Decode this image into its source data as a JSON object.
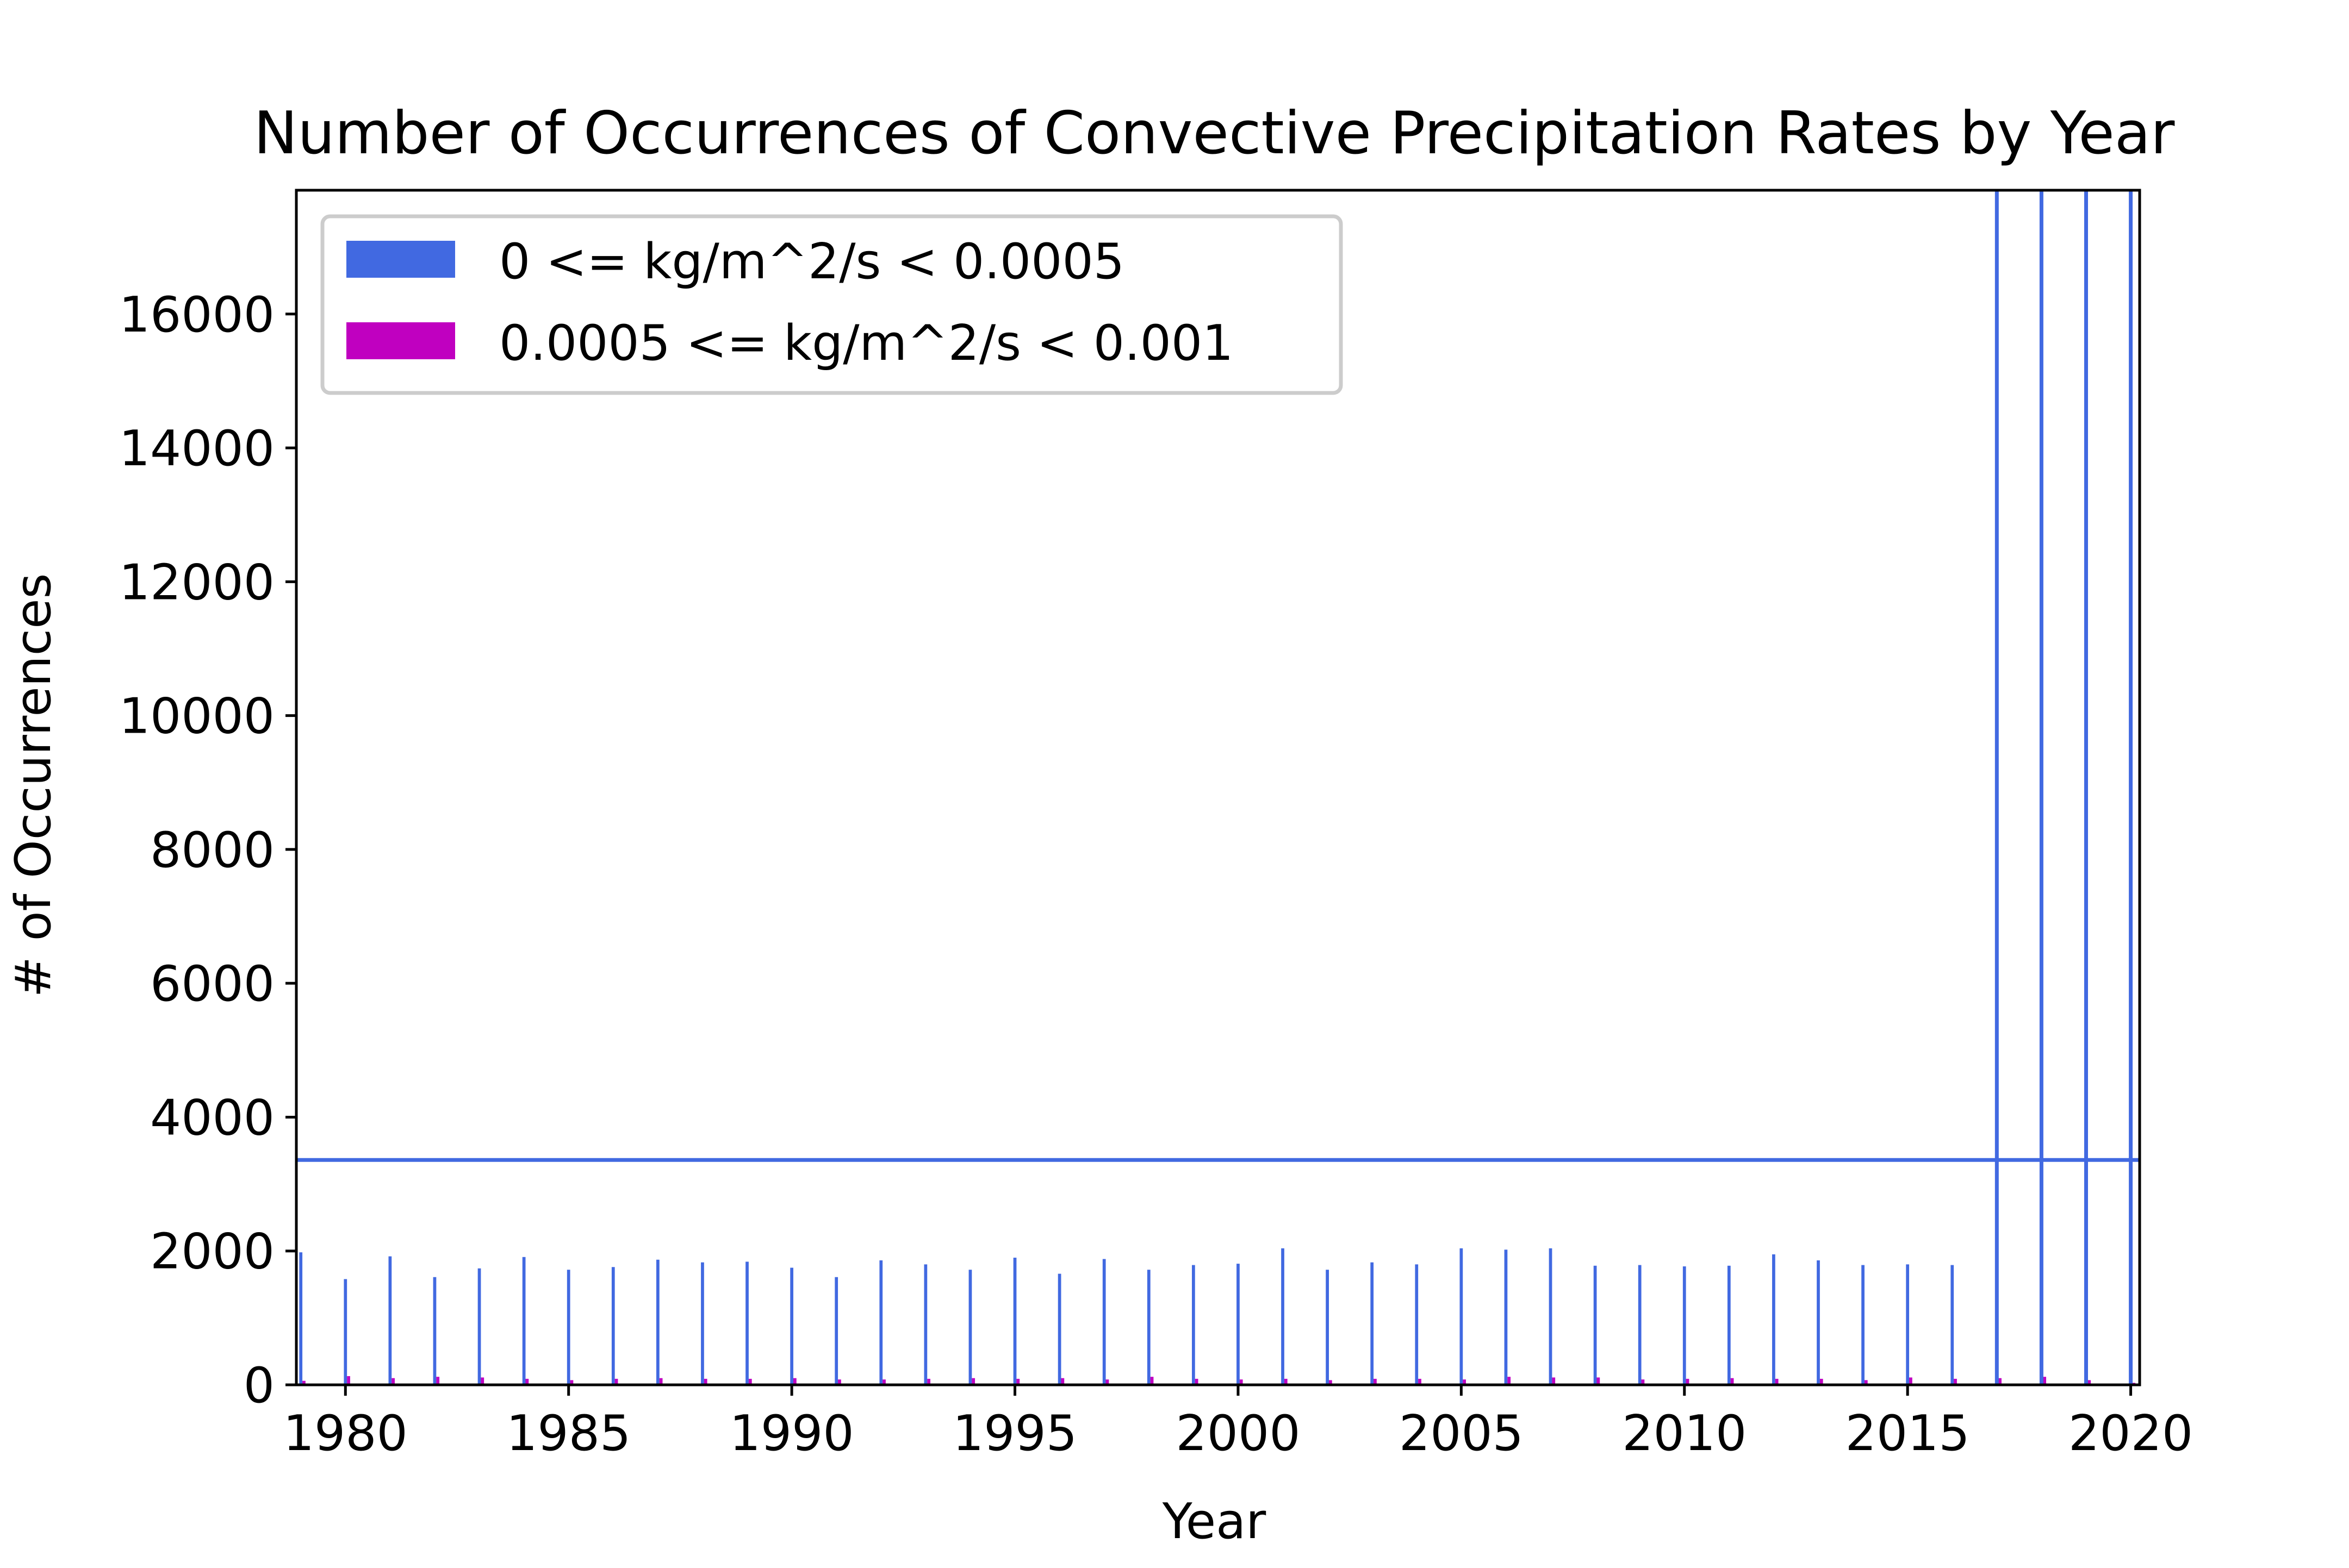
{
  "chart_data": {
    "type": "bar",
    "title": "Number of Occurrences of Convective Precipitation Rates by Year",
    "xlabel": "Year",
    "ylabel": "# of Occurrences",
    "xlim": [
      1978.9,
      2020.2
    ],
    "ylim": [
      0,
      17850
    ],
    "x_ticks": [
      1980,
      1985,
      1990,
      1995,
      2000,
      2005,
      2010,
      2015,
      2020
    ],
    "y_ticks": [
      0,
      2000,
      4000,
      6000,
      8000,
      10000,
      12000,
      14000,
      16000
    ],
    "grid": false,
    "legend_position": "top-left",
    "colors": {
      "series1": "#4169e1",
      "series2": "#c000c0"
    },
    "x": [
      1979,
      1980,
      1981,
      1982,
      1983,
      1984,
      1985,
      1986,
      1987,
      1988,
      1989,
      1990,
      1991,
      1992,
      1993,
      1994,
      1995,
      1996,
      1997,
      1998,
      1999,
      2000,
      2001,
      2002,
      2003,
      2004,
      2005,
      2006,
      2007,
      2008,
      2009,
      2010,
      2011,
      2012,
      2013,
      2014,
      2015,
      2016,
      2017,
      2018,
      2019,
      2020
    ],
    "series": [
      {
        "name": "0 <= kg/m^2/s < 0.0005",
        "values": [
          1980,
          1580,
          1920,
          1610,
          1740,
          1910,
          1720,
          1760,
          1870,
          1830,
          1840,
          1750,
          1610,
          1860,
          1800,
          1720,
          1900,
          1660,
          1880,
          1720,
          1790,
          1810,
          2040,
          1720,
          1830,
          1800,
          2040,
          2020,
          2040,
          1780,
          1790,
          1770,
          1780,
          1950,
          1860,
          1790,
          1800,
          1790,
          17850,
          17850,
          17850,
          17850
        ]
      },
      {
        "name": "0.0005 <= kg/m^2/s < 0.001",
        "values": [
          60,
          130,
          100,
          120,
          110,
          90,
          70,
          90,
          100,
          90,
          90,
          100,
          80,
          80,
          90,
          100,
          90,
          100,
          80,
          120,
          90,
          80,
          90,
          70,
          90,
          90,
          80,
          120,
          110,
          110,
          80,
          90,
          100,
          90,
          90,
          70,
          110,
          90,
          100,
          120,
          70,
          30
        ]
      }
    ],
    "reference_lines": [
      {
        "orientation": "horizontal",
        "y": 3360
      },
      {
        "orientation": "vertical",
        "x": 2017
      },
      {
        "orientation": "vertical",
        "x": 2018
      },
      {
        "orientation": "vertical",
        "x": 2019
      },
      {
        "orientation": "vertical",
        "x": 2020
      }
    ]
  }
}
